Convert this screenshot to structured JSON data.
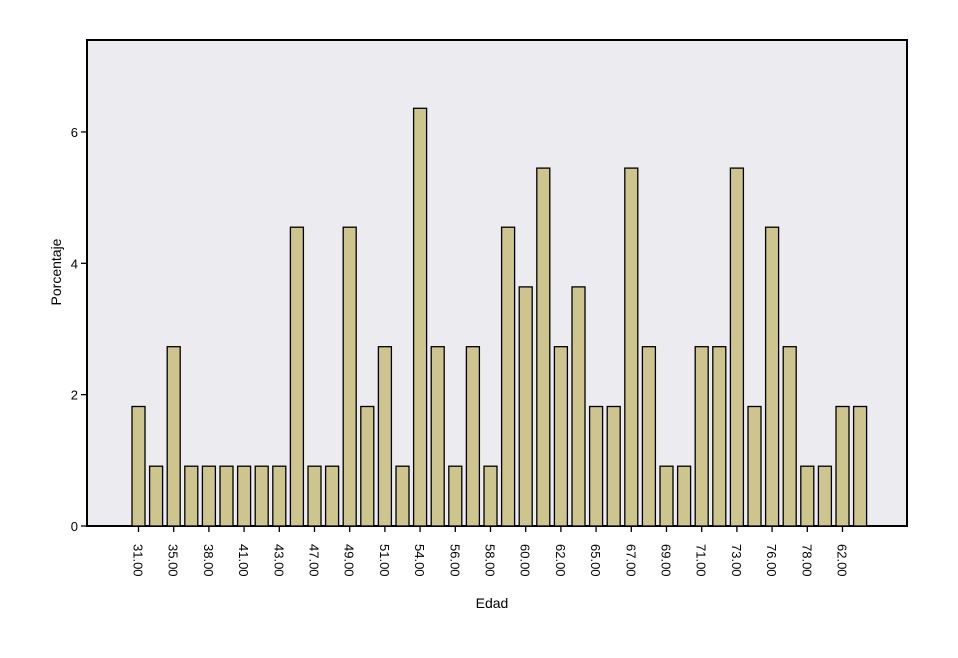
{
  "chart_data": {
    "type": "bar",
    "title": "",
    "xlabel": "Edad",
    "ylabel": "Porcentaje",
    "ylim": [
      0,
      7.4
    ],
    "yticks": [
      0,
      2,
      4,
      6
    ],
    "grid": false,
    "x_tick_labels": [
      "31.00",
      "35.00",
      "38.00",
      "41.00",
      "43.00",
      "47.00",
      "49.00",
      "51.00",
      "54.00",
      "56.00",
      "58.00",
      "60.00",
      "62.00",
      "65.00",
      "67.00",
      "69.00",
      "71.00",
      "73.00",
      "76.00",
      "78.00",
      "62.00"
    ],
    "values": [
      1.82,
      0.91,
      2.73,
      0.91,
      0.91,
      0.91,
      0.91,
      0.91,
      0.91,
      4.55,
      0.91,
      0.91,
      4.55,
      1.82,
      2.73,
      0.91,
      6.36,
      2.73,
      0.91,
      2.73,
      0.91,
      4.55,
      3.64,
      5.45,
      2.73,
      3.64,
      1.82,
      1.82,
      5.45,
      2.73,
      0.91,
      0.91,
      2.73,
      2.73,
      5.45,
      1.82,
      4.55,
      2.73,
      0.91,
      0.91,
      1.82,
      1.82
    ],
    "colors": {
      "bar_fill": "#cdc48e",
      "bar_stroke": "#000000",
      "plot_background": "#ececf0",
      "axis": "#000000"
    }
  }
}
